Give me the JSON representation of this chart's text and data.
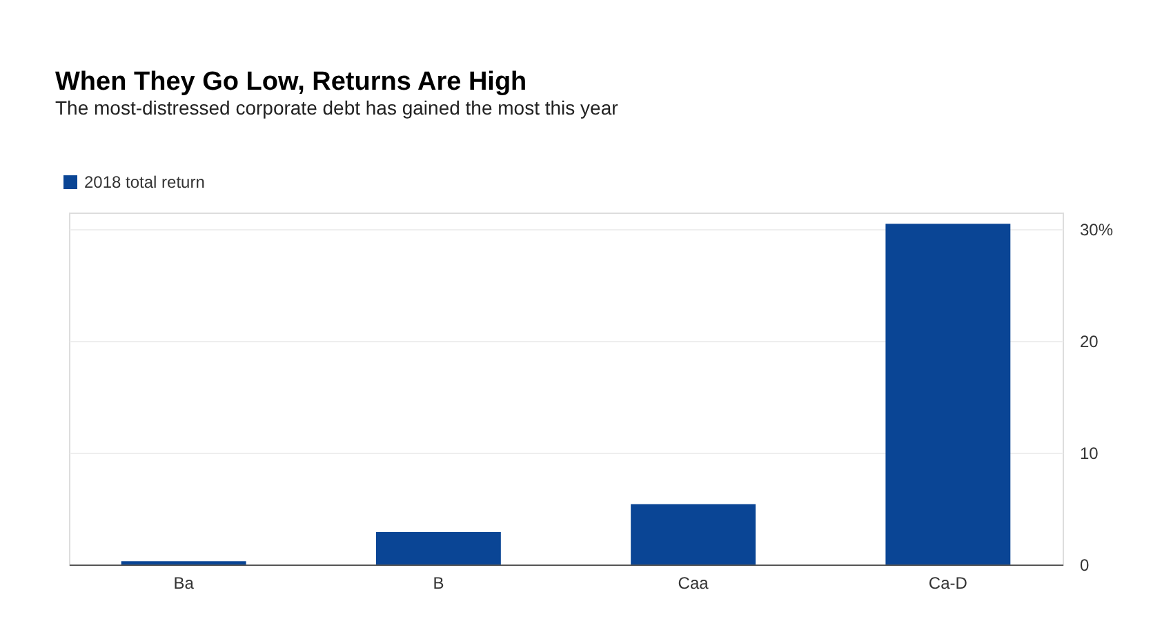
{
  "chart_data": {
    "type": "bar",
    "title": "When They Go Low, Returns Are High",
    "subtitle": "The most-distressed corporate debt has gained the most this year",
    "categories": [
      "Ba",
      "B",
      "Caa",
      "Ca-D"
    ],
    "series": [
      {
        "name": "2018 total return",
        "color": "#0a4595",
        "values": [
          0.3,
          2.9,
          5.4,
          30.5
        ]
      }
    ],
    "ylim": [
      0,
      31.5
    ],
    "yticks": [
      0,
      10,
      20,
      {
        "value": 30,
        "label": "30%"
      }
    ],
    "grid": "y",
    "legend": "top left"
  }
}
